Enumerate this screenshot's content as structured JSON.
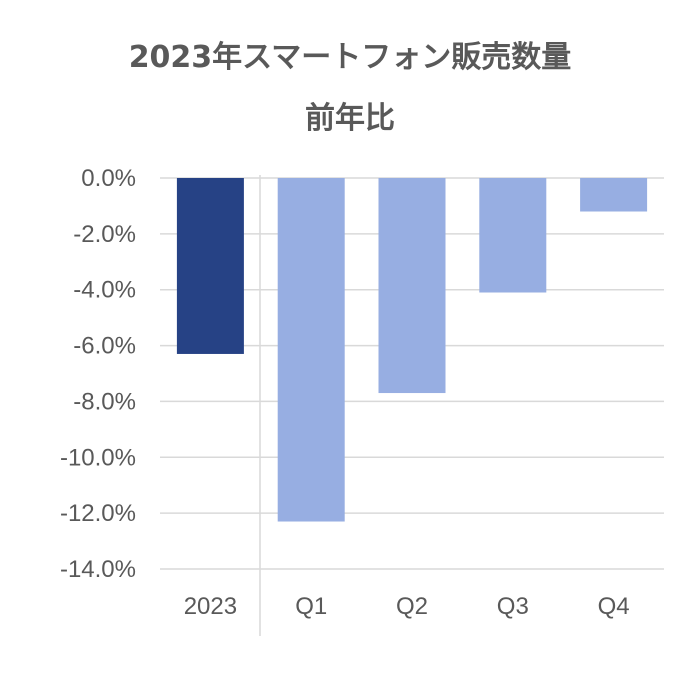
{
  "chart_data": {
    "type": "bar",
    "title": "2023年スマートフォン販売数量",
    "subtitle": "前年比",
    "categories": [
      "2023",
      "Q1",
      "Q2",
      "Q3",
      "Q4"
    ],
    "values": [
      -6.3,
      -12.3,
      -7.7,
      -4.1,
      -1.2
    ],
    "value_unit": "%",
    "ylim": [
      -14.0,
      0.0
    ],
    "yticks": [
      "0.0%",
      "-2.0%",
      "-4.0%",
      "-6.0%",
      "-8.0%",
      "-10.0%",
      "-12.0%",
      "-14.0%"
    ],
    "ytick_values": [
      0,
      -2,
      -4,
      -6,
      -8,
      -10,
      -12,
      -14
    ],
    "grid": true,
    "legend": "none",
    "colors": {
      "annual_bar": "#264285",
      "quarter_bar": "#97AEE2",
      "grid": "#D9D9D9",
      "text": "#595959"
    }
  }
}
